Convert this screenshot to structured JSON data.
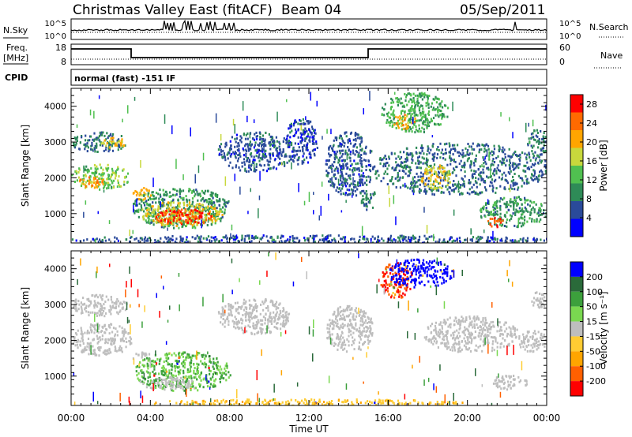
{
  "header": {
    "title": "Christmas Valley East (fitACF)",
    "beam": "Beam 04",
    "date": "05/Sep/2011"
  },
  "params": {
    "nsky_label": "N.Sky",
    "nsearch_label": "N.Search",
    "freq_label_1": "Freq.",
    "freq_label_2": "[MHz]",
    "nave_label": "Nave",
    "cpid_label": "CPID",
    "cpid_text": "normal (fast) -151 IF",
    "noise_left_ticks": [
      "10^5",
      "10^0"
    ],
    "noise_right_ticks": [
      "10^5",
      "10^0"
    ],
    "freq_left_ticks": [
      "18",
      "8"
    ],
    "freq_right_ticks": [
      "60",
      "0"
    ]
  },
  "colors": {
    "power_scale": [
      "#0000ff",
      "#2a4a9a",
      "#2e8b57",
      "#50c050",
      "#c8d83c",
      "#ffa500",
      "#ff6a00",
      "#ff0000"
    ],
    "velocity_scale": [
      "#0000ff",
      "#2a6a3a",
      "#3ca03c",
      "#7ad850",
      "#bebebe",
      "#ffcc33",
      "#ffa500",
      "#ff6000",
      "#ff0000"
    ],
    "ground_scatter": "#bebebe"
  },
  "chart_data": [
    {
      "type": "heatmap",
      "panel": "power",
      "xlabel": "Time UT",
      "ylabel": "Slant Range [km]",
      "x_ticks": [
        "00:00",
        "04:00",
        "08:00",
        "12:00",
        "16:00",
        "20:00",
        "00:00"
      ],
      "xlim_hours": [
        0,
        24
      ],
      "ylim_km": [
        180,
        4500
      ],
      "y_ticks": [
        1000,
        2000,
        3000,
        4000
      ],
      "colorbar": {
        "label": "Power [dB]",
        "ticks": [
          4,
          8,
          12,
          16,
          20,
          24,
          28
        ],
        "range": [
          0,
          30
        ]
      },
      "regions": [
        {
          "t0": 0.0,
          "t1": 2.9,
          "r0": 1700,
          "r1": 2400,
          "value": 14
        },
        {
          "t0": 0.3,
          "t1": 1.6,
          "r0": 1750,
          "r1": 2050,
          "value": 22
        },
        {
          "t0": 0.0,
          "t1": 2.8,
          "r0": 2750,
          "r1": 3300,
          "value": 8
        },
        {
          "t0": 1.5,
          "t1": 2.7,
          "r0": 2850,
          "r1": 3150,
          "value": 18
        },
        {
          "t0": 3.0,
          "t1": 4.0,
          "r0": 1400,
          "r1": 1750,
          "value": 20
        },
        {
          "t0": 3.1,
          "t1": 8.0,
          "r0": 620,
          "r1": 1750,
          "value": 10
        },
        {
          "t0": 3.4,
          "t1": 7.6,
          "r0": 680,
          "r1": 1350,
          "value": 18
        },
        {
          "t0": 4.2,
          "t1": 7.2,
          "r0": 720,
          "r1": 1150,
          "value": 26
        },
        {
          "t0": 7.4,
          "t1": 11.2,
          "r0": 2200,
          "r1": 3300,
          "value": 6
        },
        {
          "t0": 10.8,
          "t1": 12.4,
          "r0": 2400,
          "r1": 3700,
          "value": 5
        },
        {
          "t0": 12.8,
          "t1": 15.2,
          "r0": 1500,
          "r1": 3300,
          "value": 6
        },
        {
          "t0": 14.6,
          "t1": 15.4,
          "r0": 1100,
          "r1": 1700,
          "value": 8
        },
        {
          "t0": 15.6,
          "t1": 19.0,
          "r0": 3300,
          "r1": 4400,
          "value": 12
        },
        {
          "t0": 16.2,
          "t1": 17.4,
          "r0": 3400,
          "r1": 3800,
          "value": 20
        },
        {
          "t0": 15.2,
          "t1": 24.0,
          "r0": 1550,
          "r1": 3000,
          "value": 7
        },
        {
          "t0": 17.6,
          "t1": 19.2,
          "r0": 1700,
          "r1": 2400,
          "value": 18
        },
        {
          "t0": 20.6,
          "t1": 24.0,
          "r0": 650,
          "r1": 1500,
          "value": 10
        },
        {
          "t0": 21.0,
          "t1": 21.8,
          "r0": 650,
          "r1": 950,
          "value": 26
        },
        {
          "t0": 23.0,
          "t1": 24.0,
          "r0": 2600,
          "r1": 3400,
          "value": 8
        },
        {
          "t0": 0.0,
          "t1": 24.0,
          "r0": 180,
          "r1": 420,
          "value": 6
        }
      ]
    },
    {
      "type": "heatmap",
      "panel": "velocity",
      "xlabel": "Time UT",
      "ylabel": "Slant Range [km]",
      "x_ticks": [
        "00:00",
        "04:00",
        "08:00",
        "12:00",
        "16:00",
        "20:00",
        "00:00"
      ],
      "xlim_hours": [
        0,
        24
      ],
      "ylim_km": [
        180,
        4500
      ],
      "y_ticks": [
        1000,
        2000,
        3000,
        4000
      ],
      "colorbar": {
        "label": "Velocity [m s⁻¹]",
        "ticks": [
          200,
          100,
          50,
          15,
          -15,
          -50,
          -100,
          -200
        ]
      },
      "regions": [
        {
          "t0": 0.0,
          "t1": 3.0,
          "r0": 1600,
          "r1": 2500,
          "value": 0,
          "ground": true
        },
        {
          "t0": 0.0,
          "t1": 2.8,
          "r0": 2700,
          "r1": 3300,
          "value": 0,
          "ground": true
        },
        {
          "t0": 3.1,
          "t1": 4.0,
          "r0": 1400,
          "r1": 1700,
          "value": 0,
          "ground": true
        },
        {
          "t0": 3.2,
          "t1": 8.0,
          "r0": 620,
          "r1": 1700,
          "value": 30
        },
        {
          "t0": 3.4,
          "t1": 6.2,
          "r0": 650,
          "r1": 1000,
          "value": 0,
          "ground": true
        },
        {
          "t0": 7.4,
          "t1": 11.0,
          "r0": 2200,
          "r1": 3200,
          "value": 0,
          "ground": true
        },
        {
          "t0": 12.8,
          "t1": 15.2,
          "r0": 1700,
          "r1": 3000,
          "value": 0,
          "ground": true
        },
        {
          "t0": 15.6,
          "t1": 17.2,
          "r0": 3200,
          "r1": 4200,
          "value": -150
        },
        {
          "t0": 16.0,
          "t1": 19.2,
          "r0": 3500,
          "r1": 4300,
          "value": 180
        },
        {
          "t0": 17.8,
          "t1": 22.5,
          "r0": 1700,
          "r1": 2700,
          "value": 0,
          "ground": true
        },
        {
          "t0": 22.5,
          "t1": 24.0,
          "r0": 1700,
          "r1": 2300,
          "value": 0,
          "ground": true
        },
        {
          "t0": 21.2,
          "t1": 23.0,
          "r0": 650,
          "r1": 1050,
          "value": 0,
          "ground": true
        },
        {
          "t0": 23.2,
          "t1": 24.0,
          "r0": 2900,
          "r1": 3400,
          "value": 0,
          "ground": true
        },
        {
          "t0": 4.0,
          "t1": 20.0,
          "r0": 180,
          "r1": 380,
          "value": -40
        }
      ]
    }
  ]
}
